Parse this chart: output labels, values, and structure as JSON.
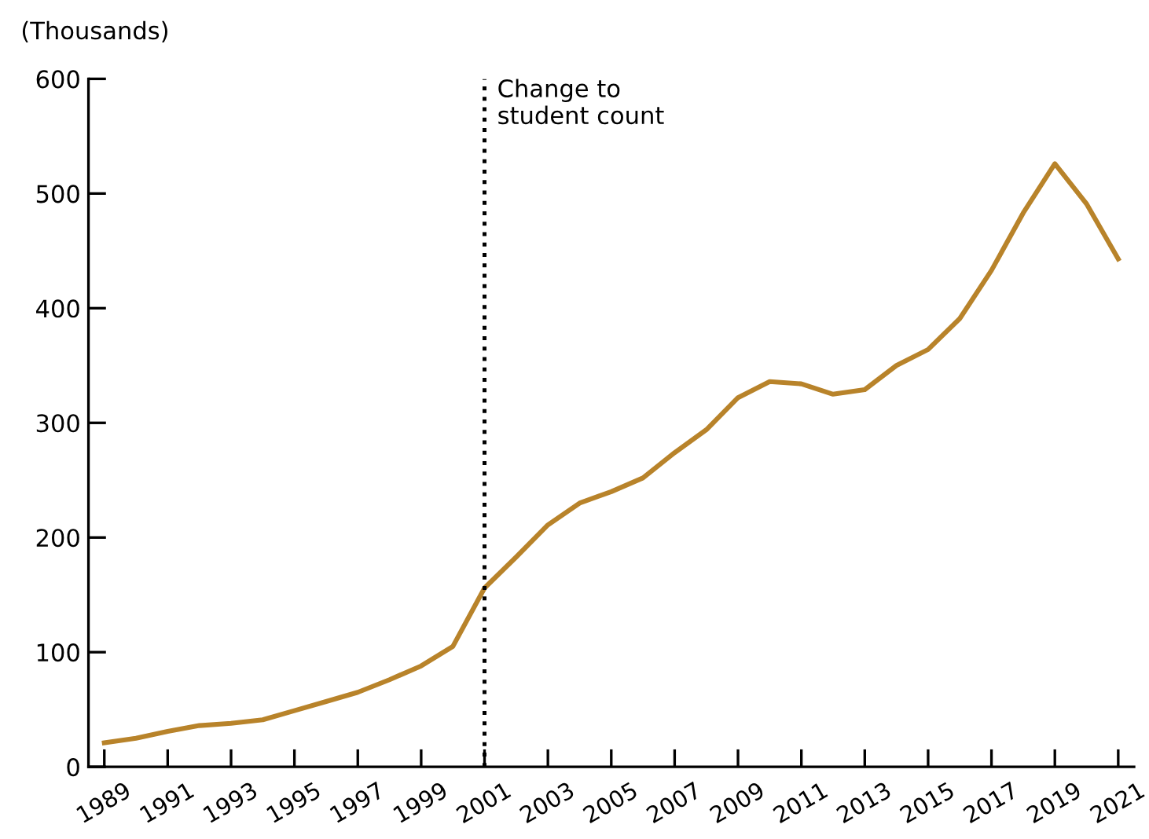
{
  "chart_data": {
    "type": "line",
    "ylabel": "(Thousands)",
    "x": [
      1989,
      1990,
      1991,
      1992,
      1993,
      1994,
      1995,
      1996,
      1997,
      1998,
      1999,
      2000,
      2001,
      2002,
      2003,
      2004,
      2005,
      2006,
      2007,
      2008,
      2009,
      2010,
      2011,
      2012,
      2013,
      2014,
      2015,
      2016,
      2017,
      2018,
      2019,
      2020,
      2021
    ],
    "series": [
      {
        "color": "#b8832a",
        "values": [
          21,
          25,
          31,
          36,
          38,
          41,
          49,
          57,
          65,
          76,
          88,
          105,
          156,
          183,
          211,
          230,
          240,
          252,
          274,
          294,
          322,
          336,
          334,
          325,
          329,
          350,
          364,
          391,
          433,
          483,
          526,
          491,
          443
        ]
      }
    ],
    "xlim": [
      1988.5,
      2021.5
    ],
    "xticks": [
      1989,
      1991,
      1993,
      1995,
      1997,
      1999,
      2001,
      2003,
      2005,
      2007,
      2009,
      2011,
      2013,
      2015,
      2017,
      2019,
      2021
    ],
    "ylim": [
      0,
      600
    ],
    "yticks": [
      0,
      100,
      200,
      300,
      400,
      500,
      600
    ],
    "ref_lines": [
      {
        "axis": "x",
        "value": 2001,
        "label": "Change to\nstudent count",
        "color": "#000000",
        "line_style": "dotted"
      }
    ],
    "grid": false,
    "legend": false,
    "marker": "none",
    "line_style": "solid"
  }
}
